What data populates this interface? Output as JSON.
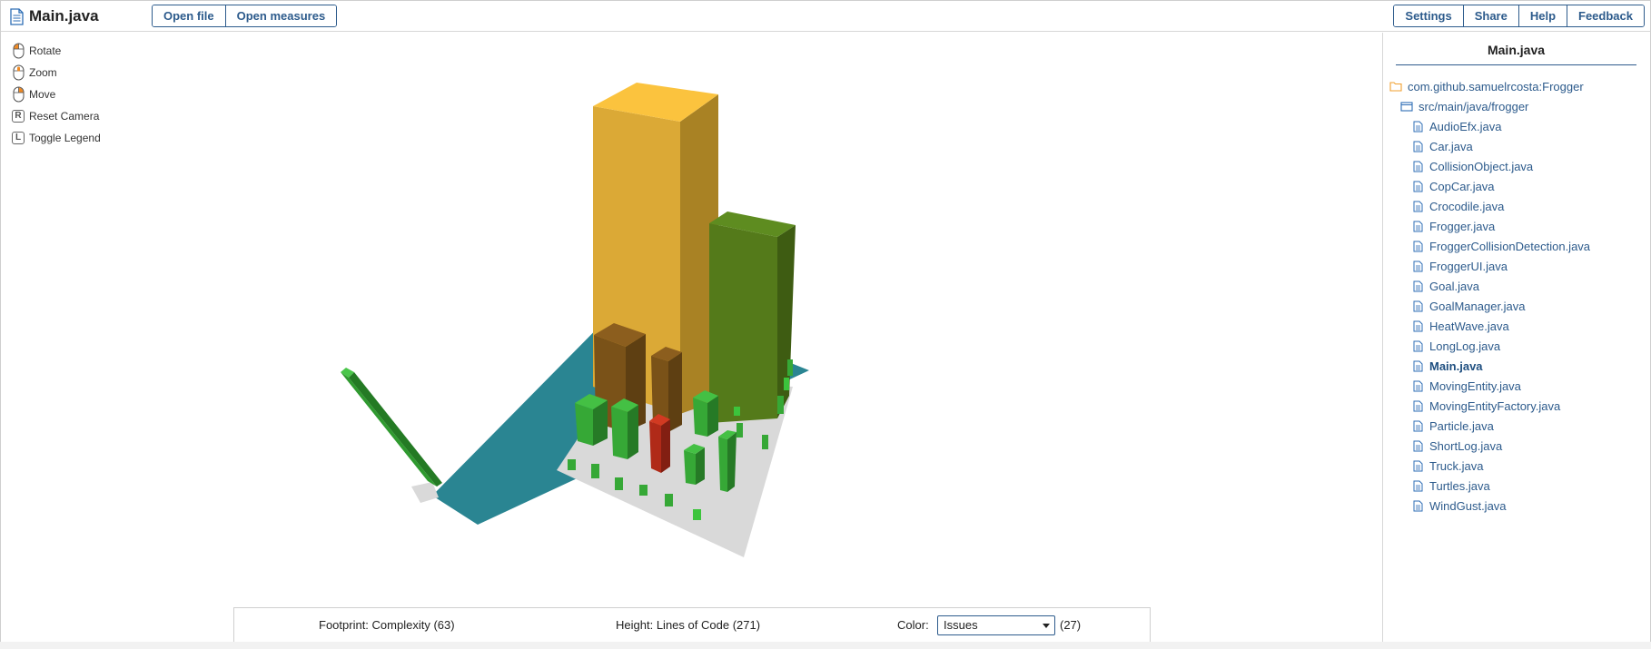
{
  "header": {
    "file_title": "Main.java",
    "left_buttons": [
      "Open file",
      "Open measures"
    ],
    "right_buttons": [
      "Settings",
      "Share",
      "Help",
      "Feedback"
    ]
  },
  "controls": [
    {
      "label": "Rotate",
      "icon": "mouse-left-icon"
    },
    {
      "label": "Zoom",
      "icon": "mouse-wheel-icon"
    },
    {
      "label": "Move",
      "icon": "mouse-right-icon"
    },
    {
      "label": "Reset Camera",
      "icon": "key-r-icon",
      "key": "R"
    },
    {
      "label": "Toggle Legend",
      "icon": "key-l-icon",
      "key": "L"
    }
  ],
  "legend": {
    "footprint_label": "Footprint:",
    "footprint_metric": "Complexity",
    "footprint_value": "(63)",
    "height_label": "Height:",
    "height_metric": "Lines of Code",
    "height_value": "(271)",
    "color_label": "Color:",
    "color_selected": "Issues",
    "color_value": "(27)"
  },
  "sidebar": {
    "title": "Main.java",
    "project": "com.github.samuelrcosta:Frogger",
    "package": "src/main/java/frogger",
    "files": [
      "AudioEfx.java",
      "Car.java",
      "CollisionObject.java",
      "CopCar.java",
      "Crocodile.java",
      "Frogger.java",
      "FroggerCollisionDetection.java",
      "FroggerUI.java",
      "Goal.java",
      "GoalManager.java",
      "HeatWave.java",
      "LongLog.java",
      "Main.java",
      "MovingEntity.java",
      "MovingEntityFactory.java",
      "Particle.java",
      "ShortLog.java",
      "Truck.java",
      "Turtles.java",
      "WindGust.java"
    ],
    "selected_file": "Main.java"
  },
  "colors": {
    "accent": "#2d5b8c",
    "yellow_building": "#f0b93a",
    "green_building": "#5a8a1e",
    "brown_building": "#8a5a1e",
    "red_building": "#c0321e",
    "bright_green": "#3cb43c",
    "teal_floor": "#2a8592",
    "gray_floor": "#d9d9d9"
  }
}
